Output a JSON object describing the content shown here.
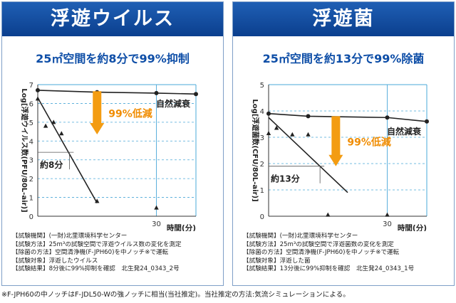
{
  "panels": [
    {
      "id": "virus",
      "title": "浮遊ウイルス",
      "subtitle": "25㎡空間を約8分で99%抑制",
      "notes": [
        "【試験機関】(一財)北里環境科学センター",
        "【試験方法】25m³の試験空間で浮遊ウイルス数の変化を測定",
        "【除菌の方法】空間清浄機(F-JPH60)を中ノッチ※で運転",
        "【試験対象】浮遊したウイルス",
        "【試験結果】8分後に99%抑制を確認　北生発24_0343_2号"
      ]
    },
    {
      "id": "bacteria",
      "title": "浮遊菌",
      "subtitle": "25㎡空間を約13分で99%除菌",
      "notes": [
        "【試験機関】(一財)北里環境科学センター",
        "【試験方法】25m³の試験空間で浮遊菌数の変化を測定",
        "【除菌の方法】空間清浄機(F-JPH60)を中ノッチ※で運転",
        "【試験対象】浮遊した菌",
        "【試験結果】13分後に99%抑制を確認　北生発24_0343_1号"
      ]
    }
  ],
  "footnote": "※F-JPH60の中ノッチはF-JDL50-Wの強ノッチに相当(当社推定)。当社推定の方法:気流シミュレーションによる。",
  "colors": {
    "header": "#1a57ad",
    "subtitle": "#0e4ea7",
    "arrow": "#f39c12",
    "arrow_text": "#f08c00",
    "grid": "#4aa8d8"
  },
  "chart_data": [
    {
      "type": "line",
      "ylabel": "Log[浮遊ウイルス数(PFU/80L-air)]",
      "xlabel": "時間(分)",
      "xlim": [
        0,
        40
      ],
      "ylim": [
        0,
        7
      ],
      "x_tick_labels": [
        {
          "x": 30,
          "label": "30"
        }
      ],
      "y_tick_labels": [
        "0",
        "1",
        "2",
        "3",
        "4",
        "5",
        "6",
        "7"
      ],
      "series": [
        {
          "name": "自然減衰",
          "marker": "circle",
          "x": [
            0,
            15,
            30,
            40
          ],
          "y": [
            6.7,
            6.6,
            6.55,
            6.5
          ]
        },
        {
          "marker": "triangle",
          "x": [
            0,
            2,
            4,
            6,
            15,
            30
          ],
          "y": [
            6.25,
            4.8,
            5.0,
            4.4,
            0.8,
            0.45
          ]
        },
        {
          "marker": "none",
          "x": [
            0,
            15
          ],
          "y": [
            6.3,
            0.7
          ]
        }
      ],
      "annotations": [
        {
          "text": "99%低減",
          "x_from": 15,
          "y_from": 6.65,
          "y_to": 4.35
        },
        {
          "text": "約8分",
          "x_from": 0,
          "x_to": 8,
          "y": 3.4
        }
      ]
    },
    {
      "type": "line",
      "ylabel": "Log[浮遊菌数(CFU/80L-air)]",
      "xlabel": "時間(分)",
      "xlim": [
        0,
        40
      ],
      "ylim": [
        0,
        5
      ],
      "x_tick_labels": [
        {
          "x": 30,
          "label": "30"
        }
      ],
      "y_tick_labels": [
        "0",
        "1",
        "2",
        "3",
        "4",
        "5"
      ],
      "series": [
        {
          "name": "自然減衰",
          "marker": "circle",
          "x": [
            0,
            10,
            30,
            40
          ],
          "y": [
            3.9,
            3.8,
            3.75,
            3.6
          ]
        },
        {
          "marker": "triangle",
          "x": [
            0,
            2,
            6,
            10,
            15,
            30
          ],
          "y": [
            3.15,
            3.35,
            3.1,
            3.1,
            0.05,
            0.05
          ]
        },
        {
          "marker": "none",
          "x": [
            0,
            20
          ],
          "y": [
            3.75,
            0.9
          ]
        }
      ],
      "annotations": [
        {
          "text": "99%低減",
          "x_from": 17,
          "y_from": 3.8,
          "y_to": 1.9
        },
        {
          "text": "約13分",
          "x_from": 0,
          "x_to": 13,
          "y": 1.9
        }
      ]
    }
  ]
}
